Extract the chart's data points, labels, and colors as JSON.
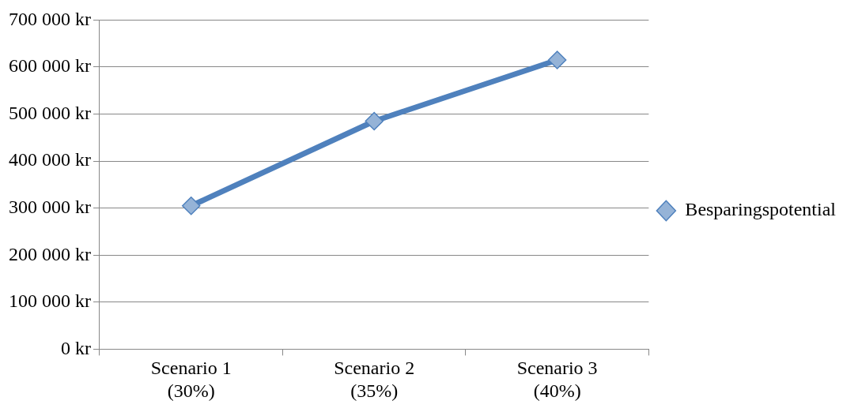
{
  "chart_data": {
    "type": "line",
    "categories": [
      "Scenario 1\n(30%)",
      "Scenario 2\n(35%)",
      "Scenario 3\n(40%)"
    ],
    "series": [
      {
        "name": "Besparingspotential",
        "color": "#4f81bd",
        "values": [
          305000,
          485000,
          615000
        ]
      }
    ],
    "ylim": [
      0,
      700000
    ],
    "yticks": [
      {
        "value": 0,
        "label": "0 kr"
      },
      {
        "value": 100000,
        "label": "100 000 kr"
      },
      {
        "value": 200000,
        "label": "200 000 kr"
      },
      {
        "value": 300000,
        "label": "300 000 kr"
      },
      {
        "value": 400000,
        "label": "400 000 kr"
      },
      {
        "value": 500000,
        "label": "500 000 kr"
      },
      {
        "value": 600000,
        "label": "600 000 kr"
      },
      {
        "value": 700000,
        "label": "700 000 kr"
      }
    ],
    "grid": "y",
    "legend": "right",
    "marker": "diamond",
    "line_style": "solid"
  }
}
